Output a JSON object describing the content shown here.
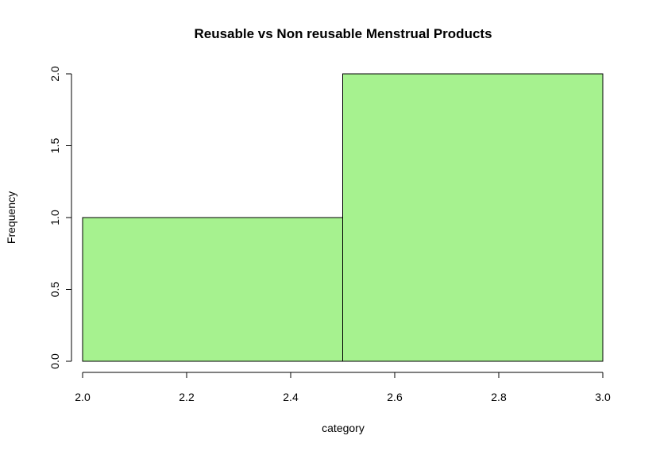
{
  "chart_data": {
    "type": "bar",
    "title": "Reusable vs Non reusable Menstrual Products",
    "xlabel": "category",
    "ylabel": "Frequency",
    "bins": [
      {
        "start": 2.0,
        "end": 2.5,
        "value": 1
      },
      {
        "start": 2.5,
        "end": 3.0,
        "value": 2
      }
    ],
    "xlim": [
      2.0,
      3.0
    ],
    "ylim": [
      0,
      2.0
    ],
    "x_ticks": [
      "2.0",
      "2.2",
      "2.4",
      "2.6",
      "2.8",
      "3.0"
    ],
    "y_ticks": [
      "0.0",
      "0.5",
      "1.0",
      "1.5",
      "2.0"
    ],
    "bar_color": "#a6f28f",
    "grid": false
  }
}
